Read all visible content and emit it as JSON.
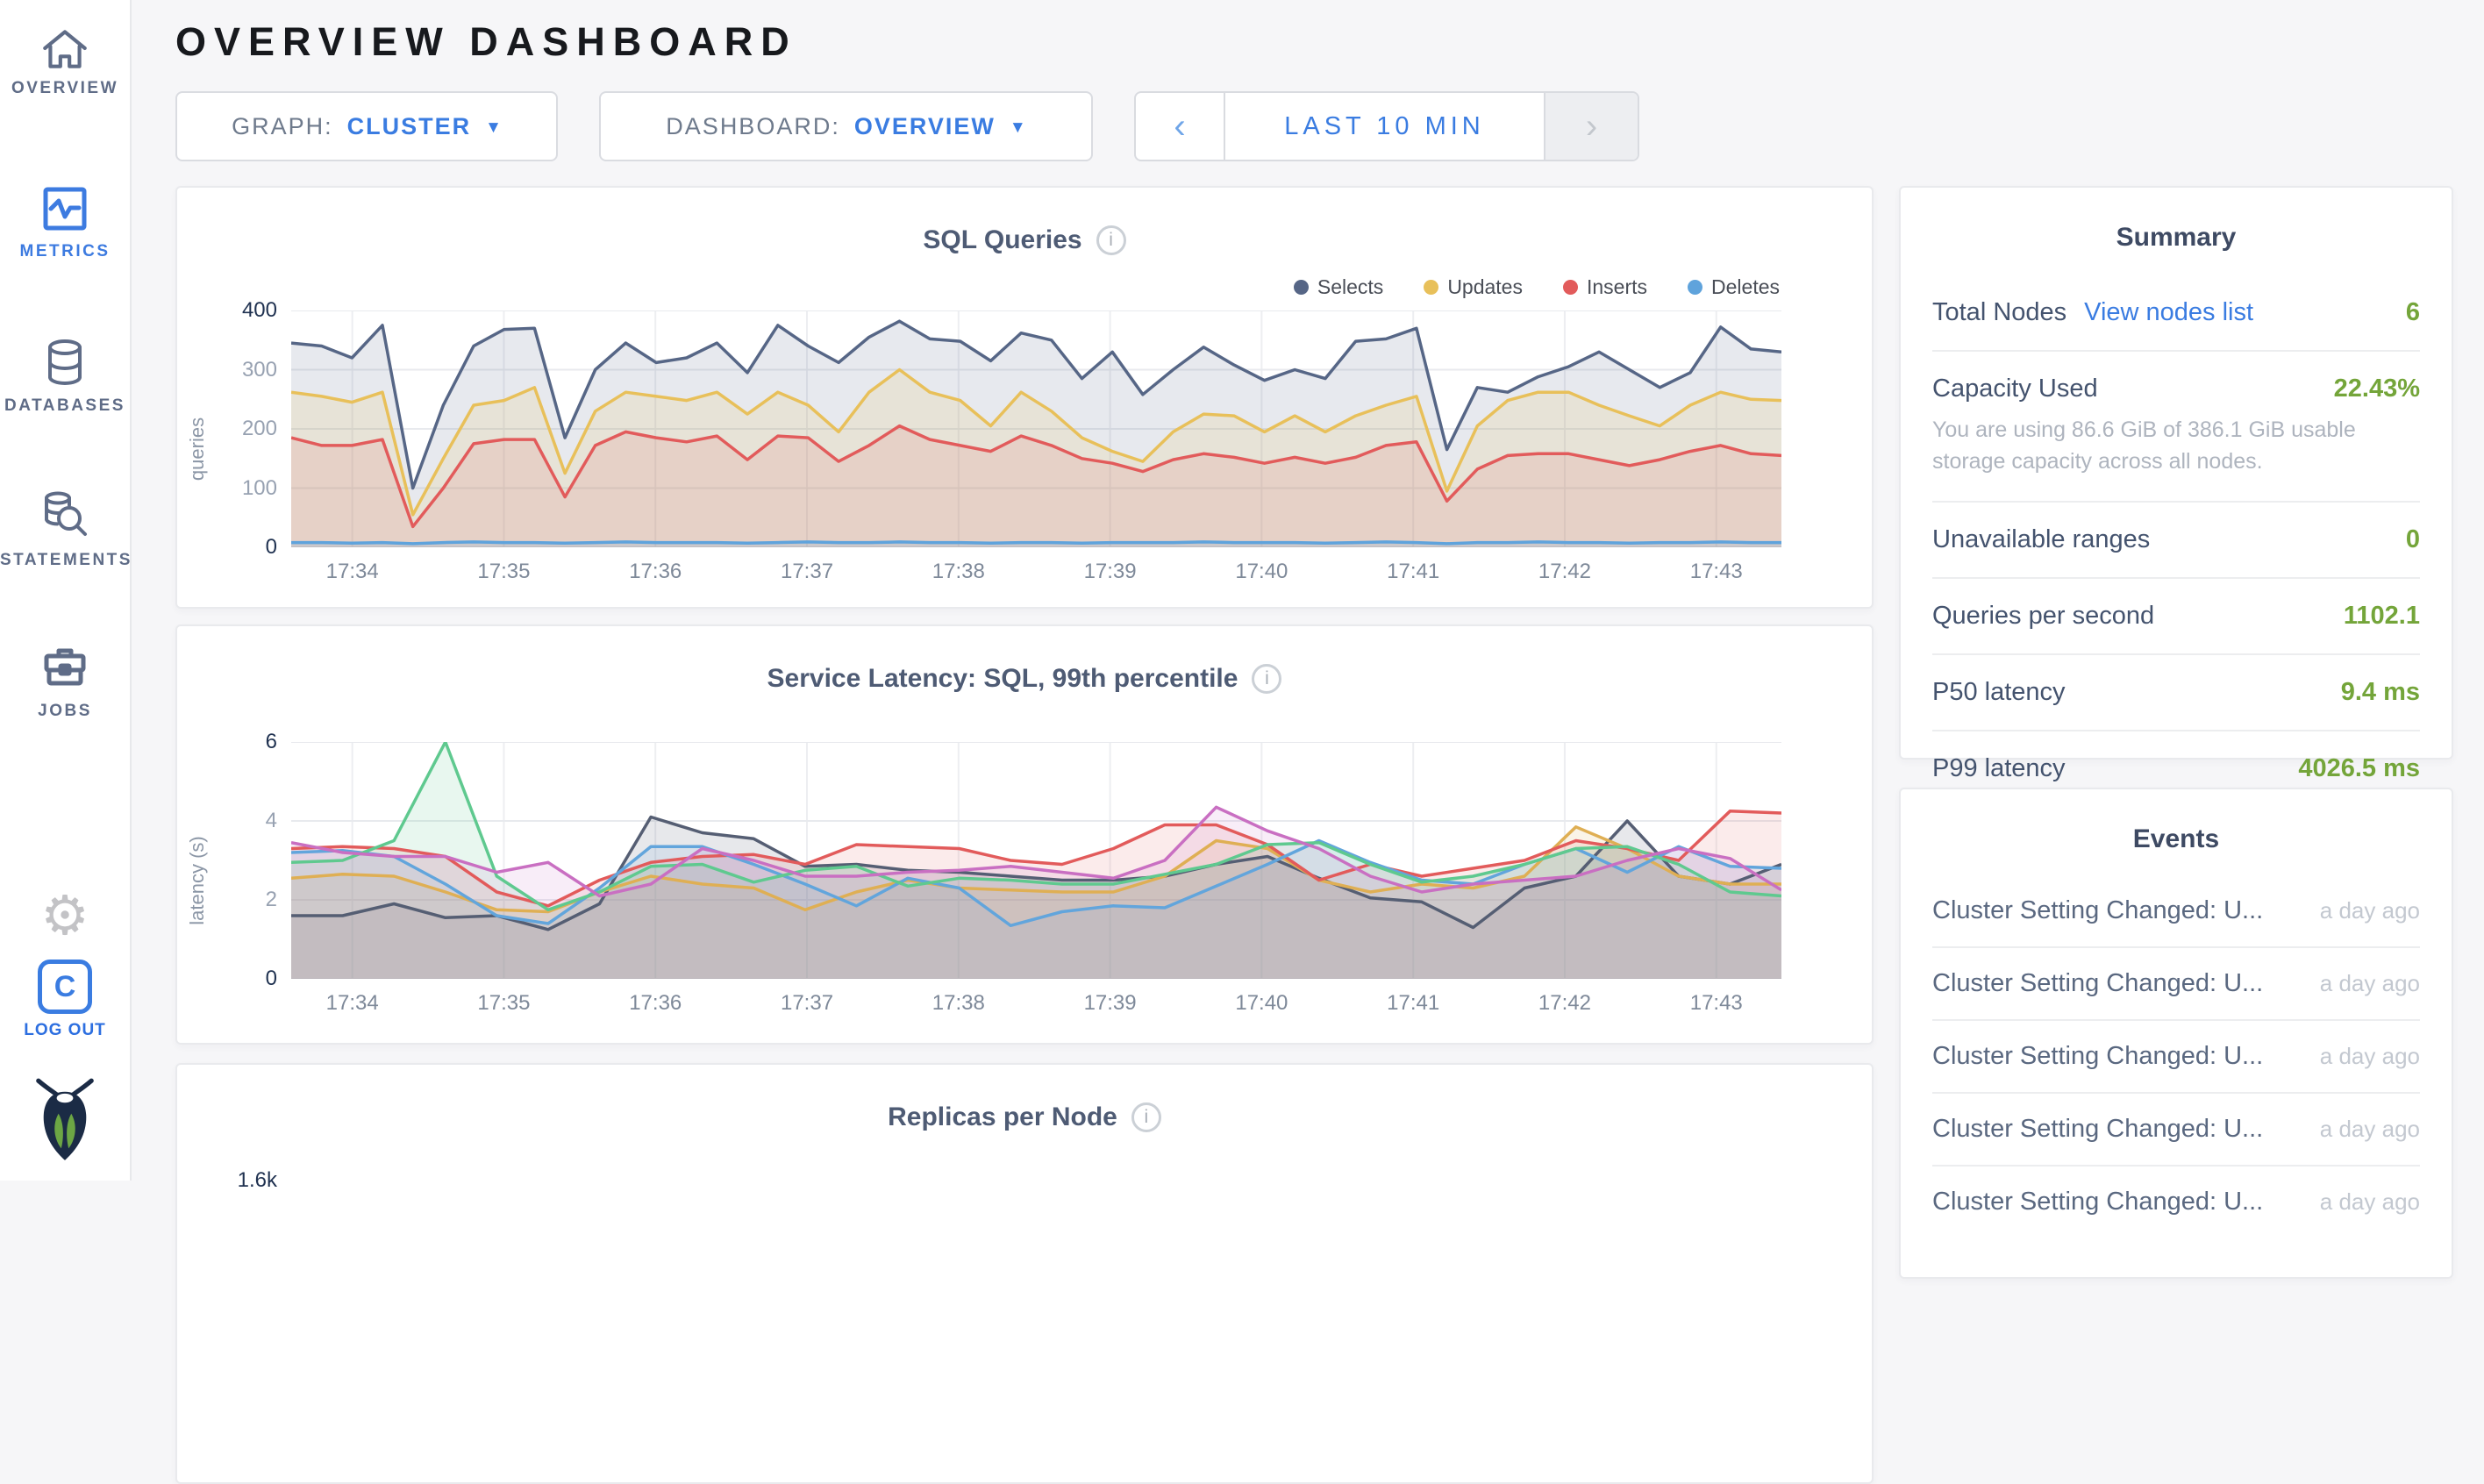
{
  "header": {
    "title": "OVERVIEW DASHBOARD"
  },
  "sidebar": {
    "items": [
      {
        "label": "OVERVIEW",
        "icon": "home-icon",
        "active": false
      },
      {
        "label": "METRICS",
        "icon": "metrics-icon",
        "active": true
      },
      {
        "label": "DATABASES",
        "icon": "databases-icon",
        "active": false
      },
      {
        "label": "STATEMENTS",
        "icon": "statements-icon",
        "active": false
      },
      {
        "label": "JOBS",
        "icon": "jobs-icon",
        "active": false
      }
    ],
    "settings_icon": "gear-icon",
    "logout": {
      "label": "LOG OUT",
      "icon": "cockroach-c-icon"
    },
    "brand_icon": "cockroach-bug-logo"
  },
  "controls": {
    "graph": {
      "label": "GRAPH:",
      "value": "CLUSTER"
    },
    "dashboard": {
      "label": "DASHBOARD:",
      "value": "OVERVIEW"
    },
    "time_range": {
      "label": "LAST 10 MIN",
      "prev_symbol": "‹",
      "next_symbol": "›",
      "prev_enabled": true,
      "next_enabled": false
    }
  },
  "colors": {
    "accent_blue": "#3A7CE1",
    "value_green": "#74A53A",
    "slate": "#5F6C87"
  },
  "chart_data": [
    {
      "type": "area",
      "title": "SQL Queries",
      "ylabel": "queries",
      "ylim": [
        0,
        400
      ],
      "y_ticks": [
        0,
        100,
        200,
        300,
        400
      ],
      "x_ticks": [
        "17:34",
        "17:35",
        "17:36",
        "17:37",
        "17:38",
        "17:39",
        "17:40",
        "17:41",
        "17:42",
        "17:43"
      ],
      "x_tick_start": 0.041,
      "x_tick_step": 0.1017,
      "grid": true,
      "legend_position": "top-right",
      "series": [
        {
          "name": "Selects",
          "color": "#566686",
          "fill_opacity": 0.14,
          "values": [
            345,
            340,
            320,
            375,
            100,
            240,
            340,
            368,
            370,
            185,
            300,
            345,
            312,
            320,
            345,
            295,
            375,
            340,
            312,
            355,
            382,
            352,
            348,
            315,
            362,
            350,
            285,
            330,
            258,
            300,
            338,
            308,
            282,
            300,
            285,
            348,
            352,
            370,
            165,
            270,
            262,
            288,
            305,
            330,
            300,
            270,
            295,
            372,
            335,
            330
          ]
        },
        {
          "name": "Updates",
          "color": "#E8C05A",
          "fill_opacity": 0.15,
          "values": [
            262,
            255,
            245,
            262,
            55,
            150,
            240,
            248,
            270,
            125,
            230,
            262,
            255,
            248,
            262,
            225,
            262,
            240,
            195,
            262,
            300,
            262,
            248,
            205,
            262,
            230,
            185,
            162,
            145,
            195,
            225,
            222,
            195,
            222,
            195,
            222,
            240,
            255,
            95,
            205,
            248,
            262,
            262,
            240,
            222,
            205,
            240,
            262,
            250,
            248
          ]
        },
        {
          "name": "Inserts",
          "color": "#E25B5B",
          "fill_opacity": 0.13,
          "values": [
            185,
            172,
            172,
            182,
            35,
            100,
            175,
            182,
            182,
            85,
            172,
            195,
            185,
            178,
            188,
            148,
            188,
            185,
            145,
            172,
            205,
            182,
            172,
            162,
            188,
            172,
            150,
            142,
            128,
            148,
            158,
            152,
            142,
            152,
            142,
            152,
            172,
            178,
            78,
            132,
            155,
            158,
            158,
            148,
            138,
            148,
            162,
            172,
            158,
            155
          ]
        },
        {
          "name": "Deletes",
          "color": "#5FA3DC",
          "fill_opacity": 0.2,
          "values": [
            8,
            8,
            7,
            8,
            6,
            8,
            9,
            8,
            8,
            7,
            8,
            9,
            8,
            8,
            8,
            7,
            8,
            9,
            8,
            8,
            9,
            8,
            8,
            7,
            8,
            8,
            7,
            8,
            8,
            8,
            9,
            8,
            8,
            8,
            7,
            8,
            9,
            8,
            6,
            8,
            8,
            9,
            8,
            8,
            7,
            8,
            8,
            9,
            8,
            8
          ]
        }
      ]
    },
    {
      "type": "area",
      "title": "Service Latency: SQL, 99th percentile",
      "ylabel": "latency (s)",
      "ylim": [
        0,
        6
      ],
      "y_ticks": [
        0,
        2,
        4,
        6
      ],
      "x_ticks": [
        "17:34",
        "17:35",
        "17:36",
        "17:37",
        "17:38",
        "17:39",
        "17:40",
        "17:41",
        "17:42",
        "17:43"
      ],
      "x_tick_start": 0.041,
      "x_tick_step": 0.1017,
      "grid": true,
      "legend_position": null,
      "series": [
        {
          "name": "",
          "color": "#555E73",
          "fill_opacity": 0.14,
          "values": [
            1.6,
            1.6,
            1.9,
            1.55,
            1.6,
            1.25,
            1.9,
            4.1,
            3.7,
            3.55,
            2.85,
            2.9,
            2.75,
            2.7,
            2.6,
            2.5,
            2.5,
            2.6,
            2.9,
            3.1,
            2.55,
            2.05,
            1.95,
            1.3,
            2.3,
            2.6,
            4.0,
            2.6,
            2.4,
            2.9
          ]
        },
        {
          "name": "",
          "color": "#DFAF54",
          "fill_opacity": 0.14,
          "values": [
            2.55,
            2.65,
            2.6,
            2.2,
            1.75,
            1.7,
            2.2,
            2.6,
            2.4,
            2.3,
            1.75,
            2.2,
            2.5,
            2.3,
            2.25,
            2.2,
            2.2,
            2.6,
            3.5,
            3.3,
            2.5,
            2.2,
            2.4,
            2.3,
            2.6,
            3.85,
            3.3,
            2.6,
            2.4,
            2.4
          ]
        },
        {
          "name": "",
          "color": "#E25B5B",
          "fill_opacity": 0.12,
          "values": [
            3.3,
            3.35,
            3.3,
            3.1,
            2.2,
            1.85,
            2.5,
            2.95,
            3.1,
            3.15,
            2.9,
            3.4,
            3.35,
            3.3,
            3.0,
            2.9,
            3.3,
            3.9,
            3.9,
            3.4,
            2.5,
            2.9,
            2.6,
            2.8,
            3.0,
            3.5,
            3.3,
            3.0,
            4.25,
            4.2
          ]
        },
        {
          "name": "",
          "color": "#62A5DC",
          "fill_opacity": 0.12,
          "values": [
            3.2,
            3.25,
            3.1,
            2.4,
            1.6,
            1.4,
            2.3,
            3.35,
            3.35,
            2.9,
            2.4,
            1.85,
            2.55,
            2.3,
            1.35,
            1.7,
            1.85,
            1.8,
            2.35,
            2.9,
            3.5,
            2.95,
            2.5,
            2.4,
            2.9,
            3.3,
            2.7,
            3.35,
            2.85,
            2.8
          ]
        },
        {
          "name": "",
          "color": "#5FC98F",
          "fill_opacity": 0.14,
          "values": [
            2.95,
            3.0,
            3.5,
            6.0,
            2.6,
            1.75,
            2.2,
            2.85,
            2.9,
            2.45,
            2.75,
            2.85,
            2.35,
            2.55,
            2.5,
            2.4,
            2.4,
            2.65,
            2.9,
            3.4,
            3.45,
            2.9,
            2.45,
            2.6,
            2.9,
            3.3,
            3.35,
            2.9,
            2.2,
            2.1
          ]
        },
        {
          "name": "",
          "color": "#C96FC2",
          "fill_opacity": 0.12,
          "values": [
            3.45,
            3.2,
            3.1,
            3.1,
            2.7,
            2.95,
            2.1,
            2.4,
            3.3,
            3.0,
            2.6,
            2.6,
            2.7,
            2.75,
            2.85,
            2.7,
            2.55,
            3.0,
            4.35,
            3.75,
            3.3,
            2.6,
            2.2,
            2.4,
            2.5,
            2.6,
            3.0,
            3.3,
            3.05,
            2.25
          ]
        }
      ]
    },
    {
      "type": "area",
      "title": "Replicas per Node",
      "partial": true,
      "y_ticks_labels": [
        "1.6k"
      ],
      "series": []
    }
  ],
  "summary": {
    "title": "Summary",
    "rows": [
      {
        "label": "Total Nodes",
        "link": "View nodes list",
        "value": "6"
      },
      {
        "label": "Capacity Used",
        "value": "22.43%",
        "caption": "You are using 86.6 GiB of 386.1 GiB usable storage capacity across all nodes."
      },
      {
        "label": "Unavailable ranges",
        "value": "0"
      },
      {
        "label": "Queries per second",
        "value": "1102.1"
      },
      {
        "label": "P50 latency",
        "value": "9.4 ms"
      },
      {
        "label": "P99 latency",
        "value": "4026.5 ms"
      }
    ]
  },
  "events": {
    "title": "Events",
    "items": [
      {
        "text": "Cluster Setting Changed: U...",
        "time": "a day ago"
      },
      {
        "text": "Cluster Setting Changed: U...",
        "time": "a day ago"
      },
      {
        "text": "Cluster Setting Changed: U...",
        "time": "a day ago"
      },
      {
        "text": "Cluster Setting Changed: U...",
        "time": "a day ago"
      },
      {
        "text": "Cluster Setting Changed: U...",
        "time": "a day ago"
      }
    ]
  }
}
